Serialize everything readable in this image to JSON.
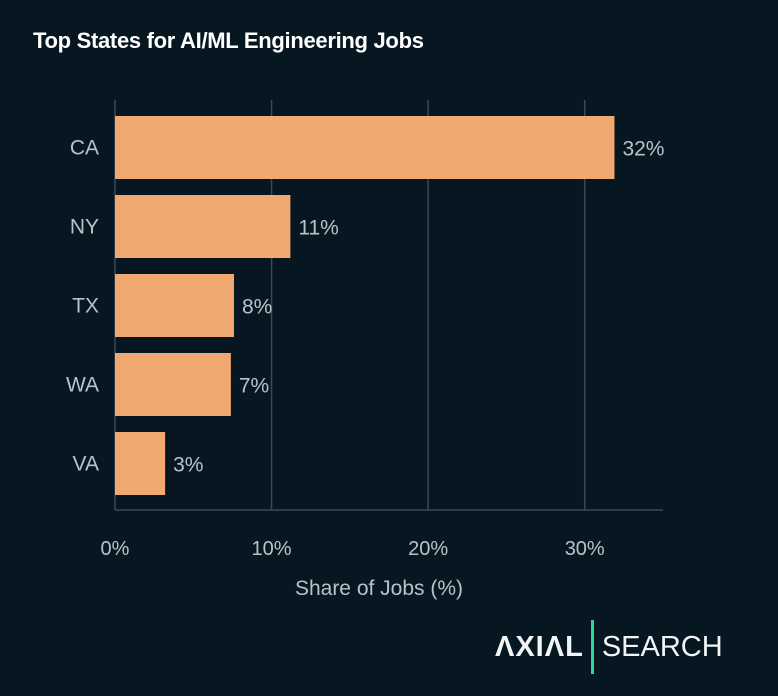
{
  "title": "Top States for AI/ML Engineering Jobs",
  "colors": {
    "background": "#071722",
    "bar": "#f2a971",
    "grid": "#3a4a55",
    "text": "#b9c2c9",
    "accent": "#2fd69b"
  },
  "chart_data": {
    "type": "bar",
    "orientation": "horizontal",
    "title": "Top States for AI/ML Engineering Jobs",
    "categories": [
      "CA",
      "NY",
      "TX",
      "WA",
      "VA"
    ],
    "values": [
      31.9,
      11.2,
      7.6,
      7.4,
      3.2
    ],
    "data_labels": [
      "32%",
      "11%",
      "8%",
      "7%",
      "3%"
    ],
    "xlabel": "Share of Jobs (%)",
    "ylabel": "",
    "xlim": [
      0,
      35
    ],
    "x_ticks": [
      0,
      10,
      20,
      30
    ],
    "x_tick_labels": [
      "0%",
      "10%",
      "20%",
      "30%"
    ],
    "grid": "vertical"
  },
  "logo": {
    "left": "AXIAL",
    "right": "SEARCH"
  }
}
